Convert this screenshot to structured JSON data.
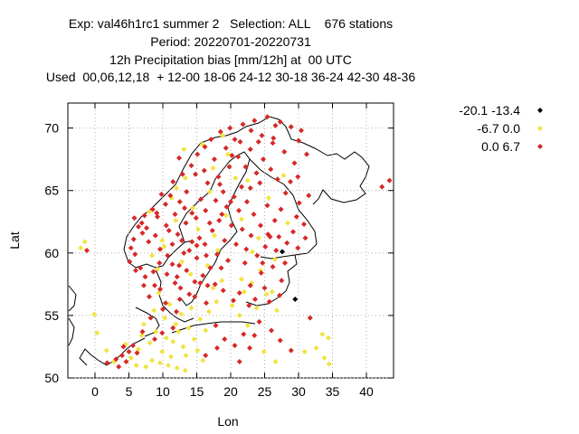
{
  "title": {
    "line1": "Exp: val46h1rc1 summer 2   Selection: ALL    676 stations",
    "line2": "Period: 20220701-20220731",
    "line3": "12h Precipitation bias [mm/12h] at  00 UTC",
    "line4": "Used  00,06,12,18  + 12-00 18-06 24-12 30-18 36-24 42-30 48-36"
  },
  "chart_data": {
    "type": "scatter",
    "xlabel": "Lon",
    "ylabel": "Lat",
    "xlim": [
      -4,
      44
    ],
    "ylim": [
      50,
      72
    ],
    "xticks": [
      0,
      5,
      10,
      15,
      20,
      25,
      30,
      35,
      40
    ],
    "yticks": [
      50,
      55,
      60,
      65,
      70
    ],
    "grid": true,
    "legend_position": "top-right outside",
    "series": [
      {
        "name": "-20.1 -13.4",
        "color": "#000000",
        "values": [
          [
            27.6,
            60.1
          ],
          [
            29.5,
            56.3
          ]
        ]
      },
      {
        "name": "-6.7 0.0",
        "color": "#f0e442",
        "values": [
          [
            -2.1,
            60.4
          ],
          [
            -1.5,
            60.9
          ],
          [
            -0.1,
            55.1
          ],
          [
            0.3,
            53.6
          ],
          [
            1.7,
            52.2
          ],
          [
            2.8,
            51.3
          ],
          [
            4.5,
            52.7
          ],
          [
            5.3,
            51.6
          ],
          [
            6.4,
            52.3
          ],
          [
            6.9,
            53.4
          ],
          [
            7.2,
            54.3
          ],
          [
            8.1,
            52.8
          ],
          [
            8.7,
            55.4
          ],
          [
            9.0,
            53.7
          ],
          [
            9.4,
            56.8
          ],
          [
            9.9,
            52.1
          ],
          [
            10.3,
            54.8
          ],
          [
            10.5,
            53.2
          ],
          [
            11.0,
            55.9
          ],
          [
            11.2,
            51.7
          ],
          [
            11.5,
            52.9
          ],
          [
            11.9,
            54.3
          ],
          [
            12.3,
            53.7
          ],
          [
            12.7,
            55.1
          ],
          [
            13.0,
            52.5
          ],
          [
            13.4,
            51.8
          ],
          [
            13.8,
            54.0
          ],
          [
            14.2,
            55.6
          ],
          [
            14.6,
            53.1
          ],
          [
            15.1,
            52.2
          ],
          [
            15.5,
            54.7
          ],
          [
            15.9,
            51.4
          ],
          [
            16.3,
            53.8
          ],
          [
            9.6,
            51.2
          ],
          [
            10.8,
            51.0
          ],
          [
            12.1,
            50.8
          ],
          [
            13.3,
            50.6
          ],
          [
            8.4,
            51.4
          ],
          [
            7.5,
            50.9
          ],
          [
            6.1,
            51.0
          ],
          [
            16.8,
            55.3
          ],
          [
            17.4,
            57.2
          ],
          [
            17.9,
            56.1
          ],
          [
            18.7,
            57.8
          ],
          [
            20.2,
            55.8
          ],
          [
            21.3,
            55.0
          ],
          [
            22.5,
            54.2
          ],
          [
            23.1,
            57.6
          ],
          [
            24.4,
            58.6
          ],
          [
            25.3,
            56.7
          ],
          [
            26.1,
            56.9
          ],
          [
            26.8,
            55.4
          ],
          [
            22.0,
            56.9
          ],
          [
            23.8,
            55.6
          ],
          [
            21.6,
            57.9
          ],
          [
            24.9,
            52.1
          ],
          [
            26.6,
            51.3
          ],
          [
            32.6,
            52.4
          ],
          [
            33.8,
            51.6
          ],
          [
            34.5,
            51.1
          ],
          [
            33.5,
            53.5
          ],
          [
            34.4,
            53.2
          ],
          [
            30.9,
            52.1
          ],
          [
            9.2,
            58.7
          ],
          [
            8.4,
            59.8
          ],
          [
            9.9,
            61.0
          ],
          [
            8.0,
            63.3
          ],
          [
            12.0,
            65.2
          ],
          [
            13.3,
            66.0
          ],
          [
            10.2,
            60.5
          ],
          [
            11.9,
            62.6
          ],
          [
            14.4,
            63.6
          ],
          [
            13.1,
            68.3
          ],
          [
            15.8,
            68.7
          ],
          [
            18.8,
            69.4
          ],
          [
            17.4,
            66.8
          ],
          [
            19.6,
            67.9
          ],
          [
            16.9,
            64.9
          ],
          [
            20.7,
            66.0
          ],
          [
            22.5,
            65.8
          ],
          [
            15.2,
            61.9
          ],
          [
            17.6,
            61.4
          ],
          [
            19.3,
            63.0
          ],
          [
            12.8,
            59.3
          ],
          [
            11.3,
            64.4
          ],
          [
            24.1,
            61.2
          ],
          [
            27.8,
            66.2
          ],
          [
            25.6,
            64.4
          ],
          [
            21.6,
            62.7
          ],
          [
            14.1,
            58.3
          ],
          [
            16.6,
            59.0
          ],
          [
            18.1,
            60.2
          ],
          [
            23.2,
            60.1
          ],
          [
            28.4,
            62.4
          ],
          [
            26.5,
            59.5
          ]
        ]
      },
      {
        "name": "0.0 6.7",
        "color": "#d62828",
        "values": [
          [
            1.8,
            51.2
          ],
          [
            3.1,
            51.5
          ],
          [
            4.0,
            51.8
          ],
          [
            4.6,
            51.3
          ],
          [
            5.0,
            52.1
          ],
          [
            5.6,
            52.6
          ],
          [
            6.2,
            52.0
          ],
          [
            4.2,
            52.5
          ],
          [
            3.5,
            50.9
          ],
          [
            7.0,
            53.7
          ],
          [
            8.8,
            53.1
          ],
          [
            9.9,
            53.6
          ],
          [
            11.5,
            54.0
          ],
          [
            12.5,
            56.3
          ],
          [
            13.9,
            56.7
          ],
          [
            15.5,
            57.6
          ],
          [
            16.4,
            56.0
          ],
          [
            17.8,
            54.2
          ],
          [
            19.1,
            53.1
          ],
          [
            20.6,
            52.6
          ],
          [
            21.9,
            53.5
          ],
          [
            23.5,
            53.4
          ],
          [
            18.0,
            52.4
          ],
          [
            16.3,
            51.8
          ],
          [
            21.3,
            51.3
          ],
          [
            22.8,
            52.4
          ],
          [
            31.7,
            54.8
          ],
          [
            26.0,
            53.8
          ],
          [
            27.3,
            53.0
          ],
          [
            28.9,
            52.2
          ],
          [
            8.2,
            54.8
          ],
          [
            10.0,
            55.5
          ],
          [
            12.0,
            55.3
          ],
          [
            14.7,
            56.5
          ],
          [
            18.9,
            57.0
          ],
          [
            20.4,
            56.2
          ],
          [
            22.7,
            55.8
          ],
          [
            24.2,
            54.5
          ],
          [
            25.7,
            56.1
          ],
          [
            -1.2,
            60.2
          ],
          [
            5.3,
            60.4
          ],
          [
            5.7,
            61.1
          ],
          [
            6.4,
            62.1
          ],
          [
            5.8,
            62.8
          ],
          [
            6.9,
            62.4
          ],
          [
            7.3,
            63.0
          ],
          [
            5.1,
            59.3
          ],
          [
            6.0,
            58.6
          ],
          [
            7.4,
            58.1
          ],
          [
            8.6,
            58.5
          ],
          [
            9.5,
            59.2
          ],
          [
            10.7,
            59.8
          ],
          [
            11.4,
            60.7
          ],
          [
            12.2,
            61.5
          ],
          [
            10.5,
            62.2
          ],
          [
            9.2,
            62.9
          ],
          [
            8.5,
            63.5
          ],
          [
            10.4,
            63.9
          ],
          [
            11.1,
            64.6
          ],
          [
            12.5,
            64.1
          ],
          [
            13.5,
            64.9
          ],
          [
            12.9,
            66.3
          ],
          [
            14.2,
            67.0
          ],
          [
            15.1,
            67.9
          ],
          [
            16.2,
            68.5
          ],
          [
            17.1,
            69.1
          ],
          [
            18.5,
            69.7
          ],
          [
            19.9,
            70.0
          ],
          [
            21.8,
            70.3
          ],
          [
            23.5,
            70.6
          ],
          [
            25.4,
            70.9
          ],
          [
            27.3,
            70.5
          ],
          [
            28.9,
            70.1
          ],
          [
            30.4,
            69.8
          ],
          [
            24.6,
            69.4
          ],
          [
            26.2,
            68.8
          ],
          [
            22.9,
            68.3
          ],
          [
            21.1,
            67.7
          ],
          [
            19.8,
            66.9
          ],
          [
            18.2,
            66.1
          ],
          [
            16.6,
            65.6
          ],
          [
            15.6,
            64.3
          ],
          [
            14.3,
            63.2
          ],
          [
            13.4,
            62.4
          ],
          [
            12.8,
            61.0
          ],
          [
            13.9,
            60.2
          ],
          [
            15.0,
            59.6
          ],
          [
            16.2,
            60.7
          ],
          [
            17.3,
            61.8
          ],
          [
            18.3,
            62.6
          ],
          [
            19.4,
            63.7
          ],
          [
            20.5,
            64.5
          ],
          [
            21.6,
            65.3
          ],
          [
            22.4,
            64.1
          ],
          [
            23.4,
            63.1
          ],
          [
            24.4,
            62.2
          ],
          [
            25.5,
            61.5
          ],
          [
            26.5,
            62.6
          ],
          [
            27.4,
            63.5
          ],
          [
            28.1,
            64.8
          ],
          [
            26.9,
            65.9
          ],
          [
            25.9,
            66.7
          ],
          [
            24.8,
            67.5
          ],
          [
            23.8,
            66.4
          ],
          [
            22.9,
            65.2
          ],
          [
            21.2,
            63.4
          ],
          [
            20.1,
            62.2
          ],
          [
            19.1,
            61.0
          ],
          [
            18.0,
            59.9
          ],
          [
            17.0,
            58.8
          ],
          [
            15.9,
            58.2
          ],
          [
            14.7,
            57.7
          ],
          [
            13.5,
            58.6
          ],
          [
            12.1,
            58.1
          ],
          [
            11.4,
            59.1
          ],
          [
            12.6,
            57.2
          ],
          [
            16.6,
            57.4
          ],
          [
            18.6,
            58.8
          ],
          [
            20.8,
            60.7
          ],
          [
            22.3,
            60.3
          ],
          [
            23.9,
            59.8
          ],
          [
            25.1,
            60.5
          ],
          [
            26.7,
            60.2
          ],
          [
            28.3,
            60.8
          ],
          [
            29.2,
            61.7
          ],
          [
            29.7,
            62.9
          ],
          [
            30.1,
            64.0
          ],
          [
            28.8,
            65.7
          ],
          [
            29.4,
            67.2
          ],
          [
            27.9,
            68.1
          ],
          [
            26.3,
            69.2
          ],
          [
            24.1,
            68.9
          ],
          [
            20.6,
            69.1
          ],
          [
            22.1,
            59.2
          ],
          [
            24.5,
            58.4
          ],
          [
            26.2,
            58.9
          ],
          [
            27.5,
            57.8
          ],
          [
            22.9,
            57.4
          ],
          [
            25.0,
            57.2
          ],
          [
            27.2,
            56.6
          ],
          [
            23.6,
            56.3
          ],
          [
            21.3,
            56.8
          ],
          [
            9.6,
            57.1
          ],
          [
            8.0,
            56.5
          ],
          [
            10.4,
            56.0
          ],
          [
            11.8,
            57.6
          ],
          [
            7.2,
            57.4
          ],
          [
            14.9,
            62.8
          ],
          [
            16.3,
            63.4
          ],
          [
            17.8,
            64.2
          ],
          [
            18.9,
            64.9
          ],
          [
            20.2,
            67.8
          ],
          [
            17.6,
            67.5
          ],
          [
            16.1,
            66.6
          ],
          [
            19.3,
            68.4
          ],
          [
            21.4,
            68.9
          ],
          [
            23.0,
            69.8
          ],
          [
            26.6,
            70.2
          ],
          [
            30.0,
            69.0
          ],
          [
            31.2,
            67.9
          ],
          [
            29.9,
            66.1
          ],
          [
            31.5,
            64.6
          ],
          [
            30.8,
            62.3
          ],
          [
            31.0,
            61.2
          ],
          [
            29.9,
            60.4
          ],
          [
            28.0,
            59.2
          ],
          [
            42.3,
            65.3
          ],
          [
            43.4,
            65.8
          ],
          [
            14.3,
            60.9
          ],
          [
            15.4,
            61.2
          ],
          [
            16.9,
            62.4
          ],
          [
            18.7,
            63.1
          ],
          [
            20.0,
            64.1
          ],
          [
            13.2,
            63.6
          ],
          [
            11.8,
            63.1
          ],
          [
            10.9,
            61.8
          ],
          [
            9.6,
            60.3
          ],
          [
            7.9,
            60.9
          ],
          [
            7.0,
            61.6
          ],
          [
            8.9,
            61.4
          ],
          [
            9.8,
            64.7
          ],
          [
            11.5,
            65.7
          ],
          [
            12.4,
            67.6
          ],
          [
            14.8,
            66.3
          ],
          [
            18.4,
            65.5
          ],
          [
            22.2,
            66.9
          ],
          [
            24.3,
            65.6
          ],
          [
            25.4,
            63.8
          ],
          [
            27.1,
            61.3
          ],
          [
            21.7,
            61.9
          ],
          [
            23.0,
            61.4
          ],
          [
            19.6,
            59.4
          ],
          [
            17.7,
            57.5
          ],
          [
            16.4,
            59.8
          ],
          [
            15.0,
            60.6
          ],
          [
            13.1,
            60.0
          ],
          [
            12.4,
            59.0
          ],
          [
            10.6,
            58.3
          ],
          [
            8.8,
            57.4
          ],
          [
            6.7,
            58.8
          ],
          [
            5.9,
            59.9
          ],
          [
            7.6,
            62.0
          ],
          [
            9.1,
            63.2
          ],
          [
            25.8,
            61.3
          ],
          [
            24.7,
            59.2
          ]
        ]
      }
    ]
  }
}
